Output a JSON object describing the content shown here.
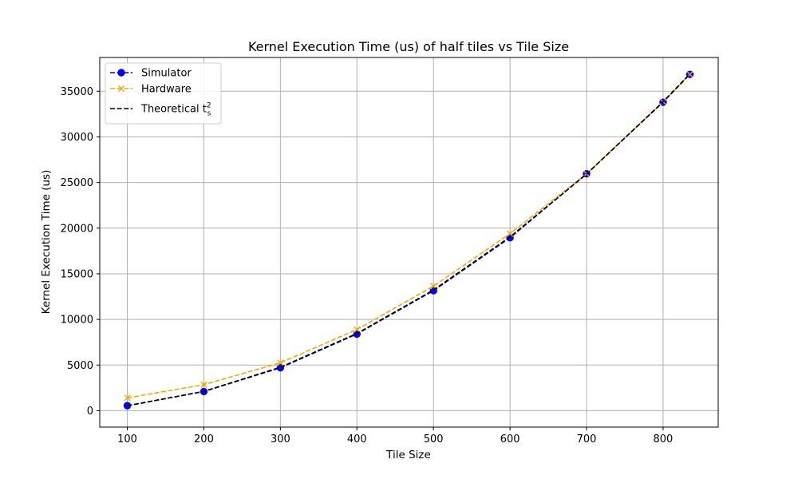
{
  "chart_data": {
    "type": "line",
    "title": "Kernel Execution Time (us) of half tiles vs Tile Size",
    "xlabel": "Tile Size",
    "ylabel": "Kernel Execution Time (us)",
    "xlim": [
      64,
      872
    ],
    "ylim": [
      -1800,
      38700
    ],
    "x_ticks": [
      100,
      200,
      300,
      400,
      500,
      600,
      700,
      800
    ],
    "y_ticks": [
      0,
      5000,
      10000,
      15000,
      20000,
      25000,
      30000,
      35000
    ],
    "grid": true,
    "legend_position": "top-left",
    "series": [
      {
        "name": "Simulator",
        "color": "#0000ff",
        "line_style": "dashed",
        "marker": "circle",
        "x": [
          100,
          200,
          300,
          400,
          500,
          600,
          700,
          800,
          835
        ],
        "y": [
          550,
          2100,
          4700,
          8400,
          13150,
          18950,
          25950,
          33800,
          36850
        ]
      },
      {
        "name": "Hardware",
        "color": "#ffa500",
        "line_style": "dashed",
        "marker": "x",
        "x": [
          100,
          200,
          300,
          400,
          500,
          600,
          700,
          800,
          835
        ],
        "y": [
          1400,
          2850,
          5250,
          8900,
          13650,
          19400,
          25950,
          33850,
          36850
        ]
      },
      {
        "name": "Theoretical",
        "name_sub": "s",
        "name_sup": "2",
        "name_base": "t",
        "color": "#000000",
        "line_style": "dashed",
        "marker": "none",
        "x": [
          100,
          200,
          300,
          400,
          500,
          600,
          700,
          800,
          835
        ],
        "y": [
          530,
          2120,
          4760,
          8460,
          13220,
          19040,
          25920,
          33850,
          36900
        ]
      }
    ]
  }
}
